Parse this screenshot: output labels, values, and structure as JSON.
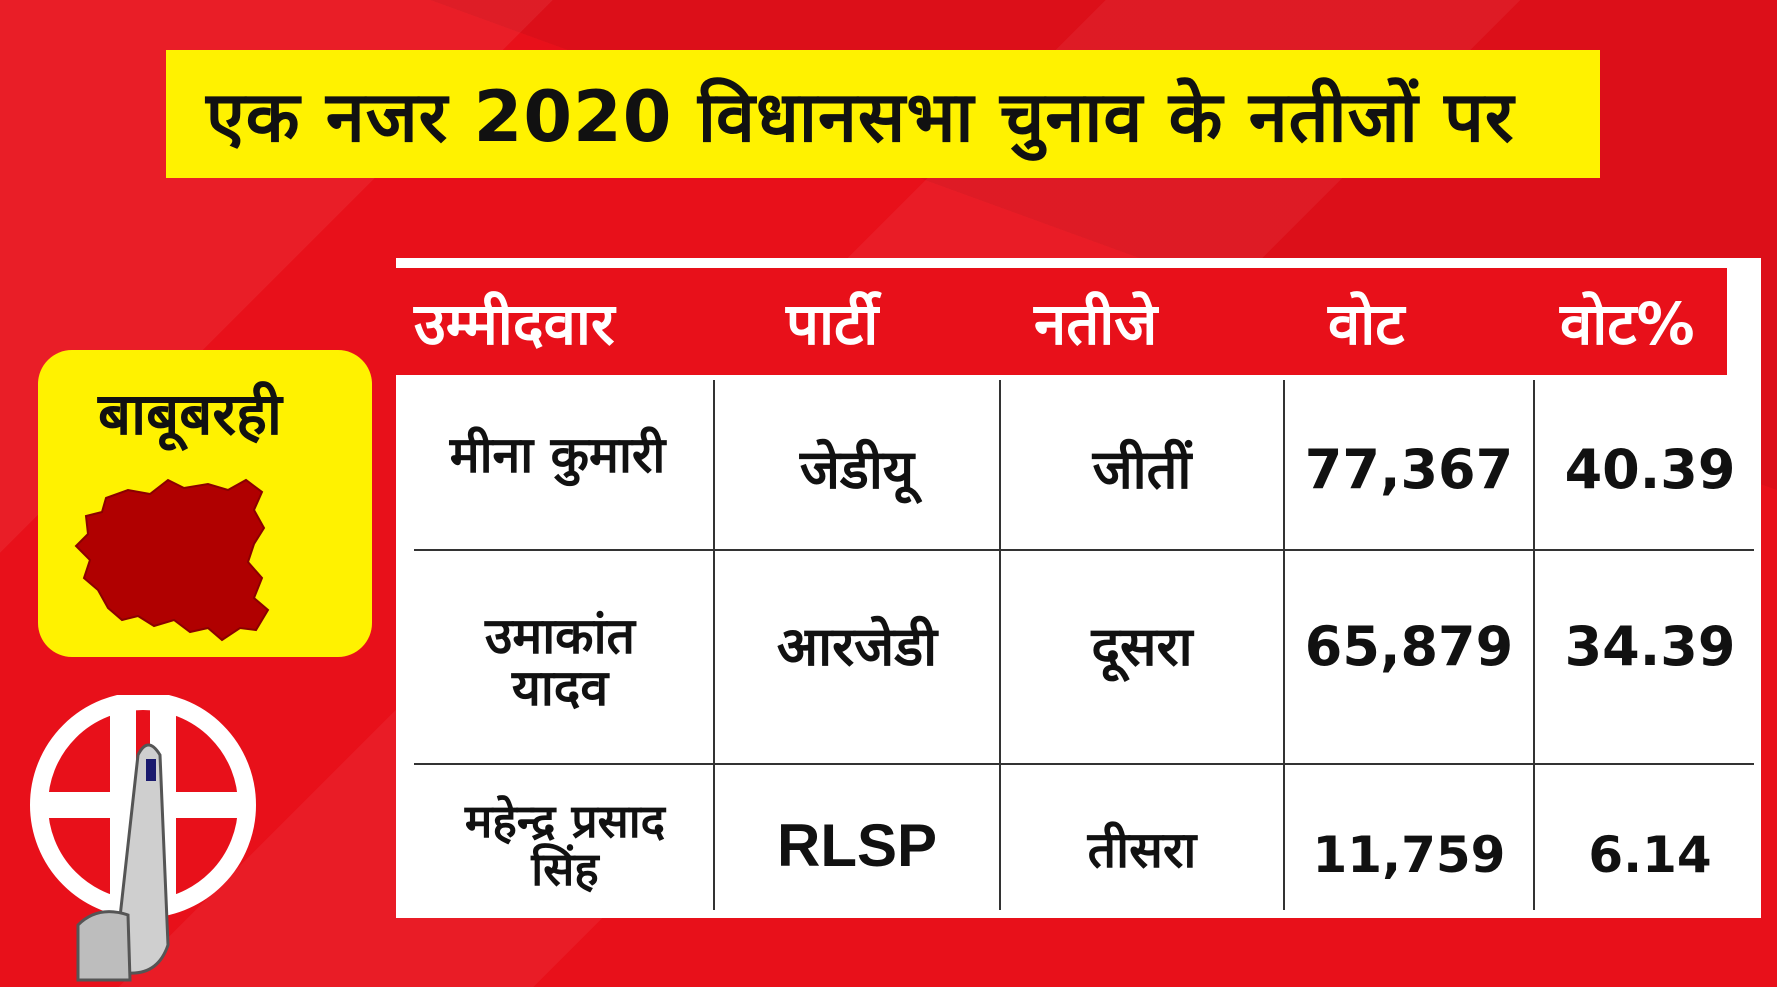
{
  "title": "एक नजर 2020 विधानसभा चुनाव के नतीजों पर",
  "constituency": {
    "name": "बाबूबरही",
    "map_icon": "constituency-map-icon"
  },
  "logo_icon": "election-commission-logo-icon",
  "table": {
    "headers": [
      "उम्मीदवार",
      "पार्टी",
      "नतीजे",
      "वोट",
      "वोट%"
    ],
    "rows": [
      [
        "मीना कुमारी",
        "जेडीयू",
        "जीतीं",
        "77,367",
        "40.39"
      ],
      [
        "उमाकांत यादव",
        "आरजेडी",
        "दूसरा",
        "65,879",
        "34.39"
      ],
      [
        "महेन्द्र प्रसाद सिंह",
        "RLSP",
        "तीसरा",
        "11,759",
        "6.14"
      ]
    ]
  },
  "colors": {
    "background": "#e8101a",
    "banner": "#fff200",
    "map": "#b00000"
  }
}
